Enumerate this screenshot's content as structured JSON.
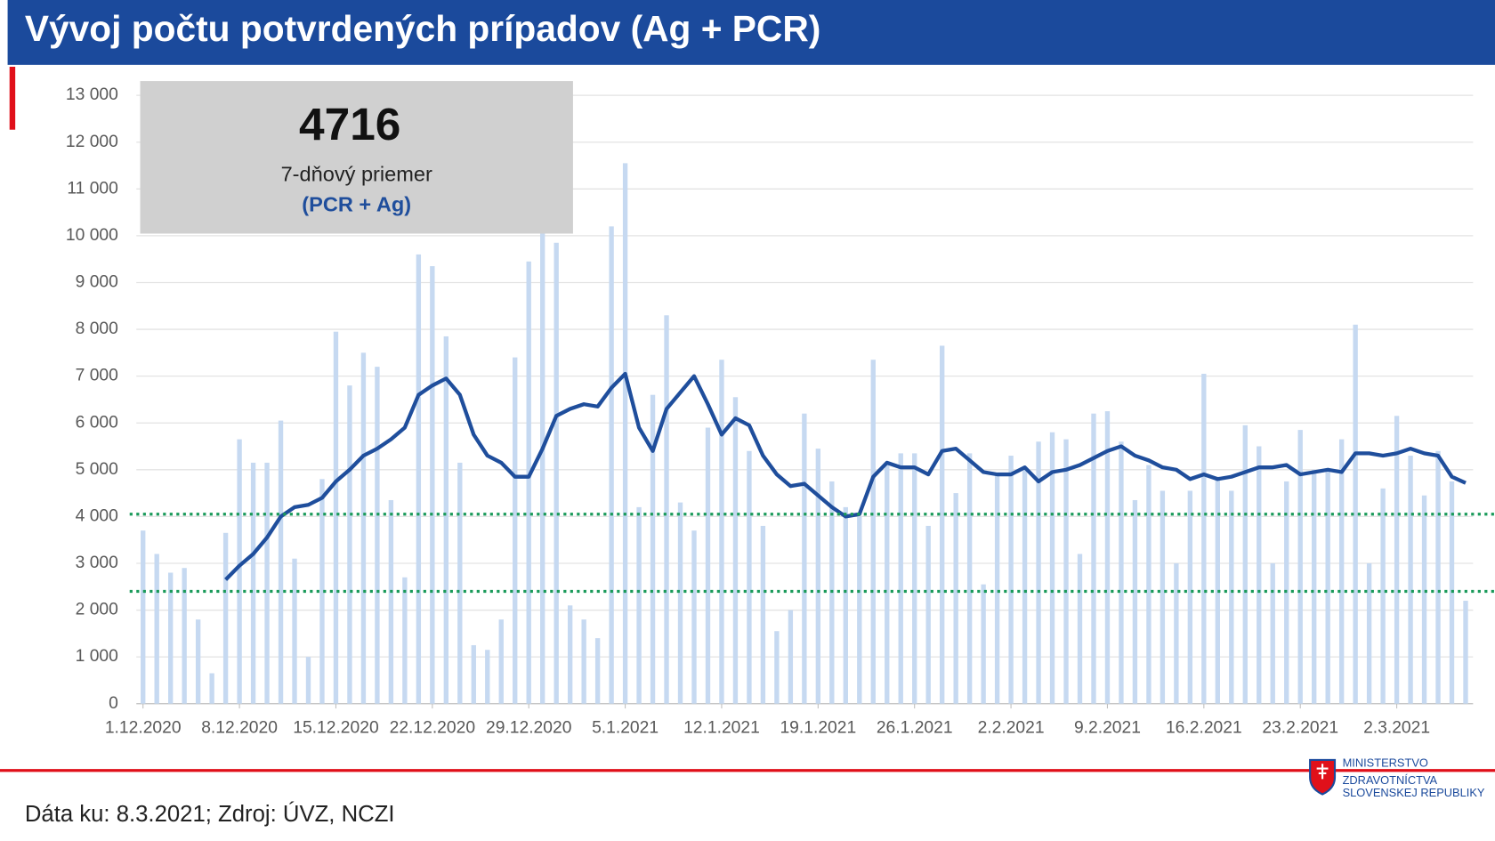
{
  "chart_data": {
    "type": "bar",
    "title": "Vývoj počtu potvrdených prípadov (Ag + PCR)",
    "categories": [
      "1.12.2020",
      null,
      null,
      null,
      null,
      null,
      null,
      "8.12.2020",
      null,
      null,
      null,
      null,
      null,
      null,
      "15.12.2020",
      null,
      null,
      null,
      null,
      null,
      null,
      "22.12.2020",
      null,
      null,
      null,
      null,
      null,
      null,
      "29.12.2020",
      null,
      null,
      null,
      null,
      null,
      null,
      "5.1.2021",
      null,
      null,
      null,
      null,
      null,
      null,
      "12.1.2021",
      null,
      null,
      null,
      null,
      null,
      null,
      "19.1.2021",
      null,
      null,
      null,
      null,
      null,
      null,
      "26.1.2021",
      null,
      null,
      null,
      null,
      null,
      null,
      "2.2.2021",
      null,
      null,
      null,
      null,
      null,
      null,
      "9.2.2021",
      null,
      null,
      null,
      null,
      null,
      null,
      "16.2.2021",
      null,
      null,
      null,
      null,
      null,
      null,
      "23.2.2021",
      null,
      null,
      null,
      null,
      null,
      null,
      "2.3.2021",
      null,
      null,
      null,
      null,
      null
    ],
    "series": [
      {
        "type": "bar",
        "color": "#c6d9f1",
        "values": [
          3700,
          3200,
          2800,
          2900,
          1800,
          650,
          3650,
          5650,
          5150,
          5150,
          6050,
          3100,
          1000,
          4800,
          7950,
          6800,
          7500,
          7200,
          4350,
          2700,
          9600,
          9350,
          7850,
          5150,
          1250,
          1150,
          1800,
          7400,
          9450,
          10050,
          9850,
          2100,
          1800,
          1400,
          10200,
          11550,
          4200,
          6600,
          8300,
          4300,
          3700,
          5900,
          7350,
          6550,
          5400,
          3800,
          1550,
          2000,
          6200,
          5450,
          4750,
          4200,
          4000,
          7350,
          5100,
          5350,
          5350,
          3800,
          7650,
          4500,
          5350,
          2550,
          4900,
          5300,
          5000,
          5600,
          5800,
          5650,
          3200,
          6200,
          6250,
          5600,
          4350,
          5100,
          4550,
          3000,
          4550,
          7050,
          4850,
          4550,
          5950,
          5500,
          3000,
          4750,
          5850,
          5000,
          5000,
          5650,
          8100,
          3000,
          4600,
          6150,
          5300,
          4450,
          5400,
          4750,
          2200
        ]
      },
      {
        "type": "line",
        "color": "#1f4e9c",
        "values": [
          null,
          null,
          null,
          null,
          null,
          null,
          2650,
          2950,
          3200,
          3550,
          4000,
          4200,
          4250,
          4400,
          4750,
          5000,
          5300,
          5450,
          5650,
          5900,
          6600,
          6800,
          6950,
          6600,
          5750,
          5300,
          5150,
          4850,
          4850,
          5450,
          6150,
          6300,
          6400,
          6350,
          6750,
          7050,
          5900,
          5400,
          6300,
          6650,
          7000,
          6400,
          5750,
          6100,
          5950,
          5300,
          4900,
          4650,
          4700,
          4450,
          4200,
          4000,
          4050,
          4850,
          5150,
          5050,
          5050,
          4900,
          5400,
          5450,
          5200,
          4950,
          4900,
          4900,
          5050,
          4750,
          4950,
          5000,
          5100,
          5250,
          5400,
          5500,
          5300,
          5200,
          5050,
          5000,
          4800,
          4900,
          4800,
          4850,
          4950,
          5050,
          5050,
          5100,
          4900,
          4950,
          5000,
          4950,
          5350,
          5350,
          5300,
          5350,
          5450,
          5350,
          5300,
          4850,
          4716
        ]
      }
    ],
    "reference_lines": [
      4050,
      2400
    ],
    "reference_color": "#1a9a5a",
    "ylim": [
      0,
      13000
    ],
    "yticks": [
      0,
      {
        "value": 1000,
        "label": "1 000"
      },
      {
        "value": 2000,
        "label": "2 000"
      },
      {
        "value": 3000,
        "label": "3 000"
      },
      {
        "value": 4000,
        "label": "4 000"
      },
      {
        "value": 5000,
        "label": "5 000"
      },
      {
        "value": 6000,
        "label": "6 000"
      },
      {
        "value": 7000,
        "label": "7 000"
      },
      {
        "value": 8000,
        "label": "8 000"
      },
      {
        "value": 9000,
        "label": "9 000"
      },
      {
        "value": 10000,
        "label": "10 000"
      },
      {
        "value": 11000,
        "label": "11 000"
      },
      {
        "value": 12000,
        "label": "12 000"
      },
      {
        "value": 13000,
        "label": "13 000"
      }
    ],
    "grid": true,
    "annotation": {
      "label": "7-dňový priemer",
      "sublabel": "(PCR + Ag)"
    }
  },
  "footer": {
    "source": "Dáta ku: 8.3.2021; Zdroj: ÚVZ, NCZI",
    "logo": [
      "MINISTERSTVO",
      "ZDRAVOTNÍCTVA",
      "SLOVENSKEJ REPUBLIKY"
    ]
  }
}
